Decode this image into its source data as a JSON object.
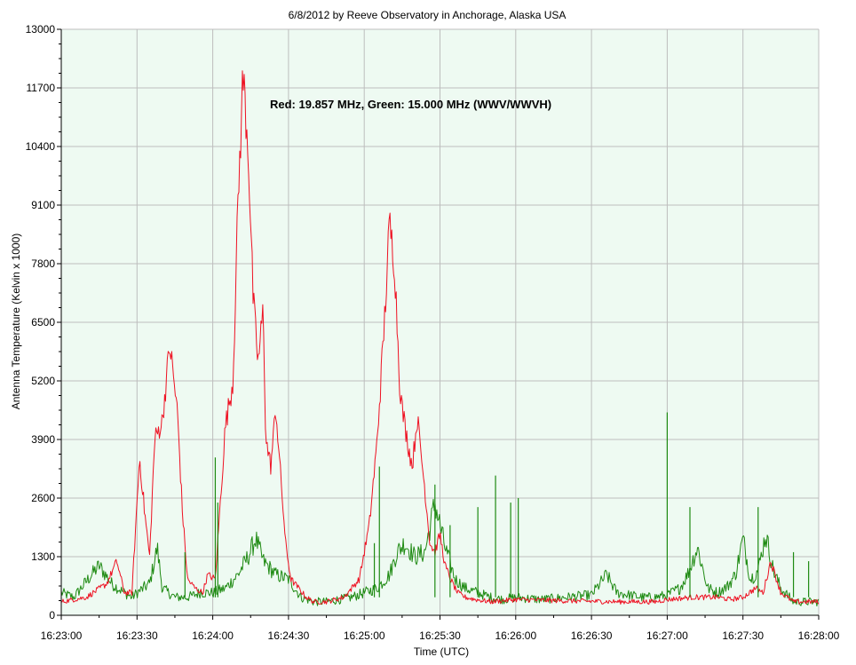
{
  "chart_data": {
    "type": "line",
    "title": "6/8/2012  by  Reeve Observatory  in  Anchorage, Alaska  USA",
    "xlabel": "Time (UTC)",
    "ylabel": "Antenna Temperature (Kelvin x 1000)",
    "annotation": "Red: 19.857 MHz, Green: 15.000 MHz (WWV/WWVH)",
    "ylim": [
      0,
      13000
    ],
    "xlim": [
      "16:23:00",
      "16:28:00"
    ],
    "y_ticks": [
      0,
      1300,
      2600,
      3900,
      5200,
      6500,
      7800,
      9100,
      10400,
      11700,
      13000
    ],
    "y_tick_labels": [
      "0",
      "1300",
      "2600",
      "3900",
      "5200",
      "6500",
      "7800",
      "9100",
      "10400",
      "11700",
      "13000"
    ],
    "x_tick_labels": [
      "16:23:00",
      "16:23:30",
      "16:24:00",
      "16:24:30",
      "16:25:00",
      "16:25:30",
      "16:26:00",
      "16:26:30",
      "16:27:00",
      "16:27:30",
      "16:28:00"
    ],
    "grid": true,
    "background_color": "#eefaf2",
    "series": [
      {
        "color": "#ee1122",
        "x": [
          "16:23:00",
          "16:23:10",
          "16:23:18",
          "16:23:22",
          "16:23:25",
          "16:23:28",
          "16:23:31",
          "16:23:33",
          "16:23:35",
          "16:23:37",
          "16:23:40",
          "16:23:43",
          "16:23:46",
          "16:23:48",
          "16:23:50",
          "16:23:53",
          "16:23:56",
          "16:23:58",
          "16:24:01",
          "16:24:05",
          "16:24:08",
          "16:24:10",
          "16:24:12",
          "16:24:14",
          "16:24:16",
          "16:24:18",
          "16:24:20",
          "16:24:21",
          "16:24:23",
          "16:24:25",
          "16:24:27",
          "16:24:29",
          "16:24:31",
          "16:24:34",
          "16:24:37",
          "16:24:40",
          "16:24:45",
          "16:24:52",
          "16:24:58",
          "16:25:02",
          "16:25:05",
          "16:25:08",
          "16:25:10",
          "16:25:12",
          "16:25:14",
          "16:25:15",
          "16:25:17",
          "16:25:19",
          "16:25:21",
          "16:25:24",
          "16:25:26",
          "16:25:28",
          "16:25:30",
          "16:25:32",
          "16:25:35",
          "16:25:37",
          "16:25:40",
          "16:25:44",
          "16:25:50",
          "16:26:00",
          "16:26:20",
          "16:26:40",
          "16:26:55",
          "16:27:00",
          "16:27:10",
          "16:27:20",
          "16:27:25",
          "16:27:30",
          "16:27:35",
          "16:27:38",
          "16:27:41",
          "16:27:45",
          "16:27:50",
          "16:27:55",
          "16:28:00"
        ],
        "values": [
          300,
          400,
          700,
          1200,
          500,
          500,
          3500,
          2300,
          1300,
          3900,
          4300,
          6000,
          4500,
          2300,
          800,
          600,
          500,
          900,
          800,
          4200,
          5200,
          9100,
          12000,
          10400,
          7000,
          5600,
          6800,
          3900,
          3300,
          4600,
          3000,
          1500,
          800,
          600,
          400,
          300,
          300,
          400,
          800,
          2000,
          3800,
          6500,
          8700,
          7800,
          5200,
          4600,
          3900,
          3300,
          4400,
          2800,
          1600,
          1400,
          1800,
          1100,
          700,
          500,
          400,
          350,
          300,
          350,
          320,
          300,
          300,
          350,
          400,
          400,
          350,
          400,
          600,
          500,
          1200,
          500,
          300,
          300,
          300
        ]
      },
      {
        "color": "#1e8a12",
        "x": [
          "16:23:00",
          "16:23:05",
          "16:23:12",
          "16:23:15",
          "16:23:20",
          "16:23:25",
          "16:23:28",
          "16:23:30",
          "16:23:35",
          "16:23:38",
          "16:23:40",
          "16:23:45",
          "16:23:50",
          "16:23:55",
          "16:24:00",
          "16:24:05",
          "16:24:10",
          "16:24:14",
          "16:24:17",
          "16:24:20",
          "16:24:25",
          "16:24:30",
          "16:24:35",
          "16:24:40",
          "16:24:45",
          "16:24:50",
          "16:24:55",
          "16:25:00",
          "16:25:05",
          "16:25:10",
          "16:25:13",
          "16:25:16",
          "16:25:20",
          "16:25:24",
          "16:25:28",
          "16:25:32",
          "16:25:36",
          "16:25:40",
          "16:25:45",
          "16:25:50",
          "16:25:55",
          "16:26:00",
          "16:26:10",
          "16:26:20",
          "16:26:30",
          "16:26:36",
          "16:26:40",
          "16:26:45",
          "16:26:50",
          "16:26:55",
          "16:27:00",
          "16:27:05",
          "16:27:08",
          "16:27:12",
          "16:27:16",
          "16:27:20",
          "16:27:24",
          "16:27:27",
          "16:27:30",
          "16:27:33",
          "16:27:36",
          "16:27:39",
          "16:27:42",
          "16:27:45",
          "16:27:50",
          "16:27:55",
          "16:28:00"
        ],
        "values": [
          500,
          400,
          900,
          1100,
          700,
          500,
          400,
          500,
          700,
          1500,
          600,
          400,
          400,
          500,
          500,
          600,
          900,
          1300,
          1700,
          1200,
          900,
          800,
          400,
          300,
          300,
          350,
          400,
          500,
          600,
          900,
          1400,
          1600,
          1300,
          1400,
          2500,
          1500,
          800,
          600,
          500,
          400,
          350,
          400,
          350,
          400,
          450,
          900,
          500,
          450,
          400,
          400,
          450,
          600,
          900,
          1500,
          600,
          500,
          650,
          900,
          1700,
          800,
          1000,
          1800,
          1000,
          600,
          300,
          300,
          300
        ]
      }
    ],
    "spikes": [
      {
        "series": 1,
        "time": "16:23:49",
        "value": 1400
      },
      {
        "series": 1,
        "time": "16:24:01",
        "value": 3500
      },
      {
        "series": 1,
        "time": "16:24:02",
        "value": 2500
      },
      {
        "series": 1,
        "time": "16:25:06",
        "value": 3300
      },
      {
        "series": 1,
        "time": "16:25:04",
        "value": 1600
      },
      {
        "series": 1,
        "time": "16:25:28",
        "value": 2900
      },
      {
        "series": 1,
        "time": "16:25:34",
        "value": 2000
      },
      {
        "series": 1,
        "time": "16:25:45",
        "value": 2400
      },
      {
        "series": 1,
        "time": "16:25:52",
        "value": 3100
      },
      {
        "series": 1,
        "time": "16:25:58",
        "value": 2500
      },
      {
        "series": 1,
        "time": "16:26:01",
        "value": 2600
      },
      {
        "series": 1,
        "time": "16:27:00",
        "value": 4500
      },
      {
        "series": 1,
        "time": "16:27:09",
        "value": 2400
      },
      {
        "series": 1,
        "time": "16:27:36",
        "value": 2400
      },
      {
        "series": 1,
        "time": "16:27:50",
        "value": 1400
      },
      {
        "series": 1,
        "time": "16:27:56",
        "value": 1200
      }
    ]
  }
}
